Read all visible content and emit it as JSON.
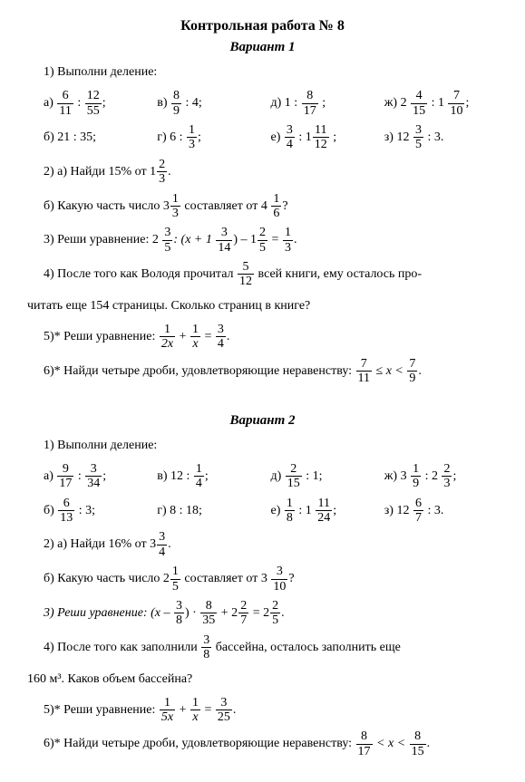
{
  "title": "Контрольная работа № 8",
  "v1": {
    "heading": "Вариант 1",
    "p1_intro": "1) Выполни деление:",
    "p1a_l": "а) ",
    "p1a_f1n": "6",
    "p1a_f1d": "11",
    "p1a_m": " : ",
    "p1a_f2n": "12",
    "p1a_f2d": "55",
    "p1a_r": ";",
    "p1v_l": "в) ",
    "p1v_fn": "8",
    "p1v_fd": "9",
    "p1v_r": " : 4;",
    "p1d_l": "д) 1 : ",
    "p1d_fn": "8",
    "p1d_fd": "17",
    "p1d_r": " ;",
    "p1zh_l": "ж) 2 ",
    "p1zh_f1n": "4",
    "p1zh_f1d": "15",
    "p1zh_m": " : 1 ",
    "p1zh_f2n": "7",
    "p1zh_f2d": "10",
    "p1zh_r": ";",
    "p1b": "б)  21 : 35;",
    "p1g_l": "г) 6 : ",
    "p1g_fn": "1",
    "p1g_fd": "3",
    "p1g_r": ";",
    "p1e_l": "е)  ",
    "p1e_f1n": "3",
    "p1e_f1d": "4",
    "p1e_m": " : 1",
    "p1e_f2n": "11",
    "p1e_f2d": "12",
    "p1e_r": " ;",
    "p1z_l": "з) 12 ",
    "p1z_fn": "3",
    "p1z_fd": "5",
    "p1z_r": " : 3.",
    "p2a_l": "2) а) Найди 15% от 1",
    "p2a_fn": "2",
    "p2a_fd": "3",
    "p2a_r": ".",
    "p2b_l": "б) Какую часть число 3",
    "p2b_f1n": "1",
    "p2b_f1d": "3",
    "p2b_m": " составляет от 4 ",
    "p2b_f2n": "1",
    "p2b_f2d": "6",
    "p2b_r": "?",
    "p3_l": "3) Реши уравнение:  2 ",
    "p3_f1n": "3",
    "p3_f1d": "5",
    "p3_m1": ": (x + 1 ",
    "p3_f2n": "3",
    "p3_f2d": "14",
    "p3_m2": ") – 1",
    "p3_f3n": "2",
    "p3_f3d": "5",
    "p3_m3": " = ",
    "p3_f4n": "1",
    "p3_f4d": "3",
    "p3_r": ".",
    "p4_l": "4) После того как Володя прочитал ",
    "p4_fn": "5",
    "p4_fd": "12",
    "p4_m": " всей книги, ему осталось про-",
    "p4_2": "читать еще 154 страницы. Сколько страниц в книге?",
    "p5_l": "5)* Реши уравнение: ",
    "p5_f1n": "1",
    "p5_f1d": "2x",
    "p5_m": " + ",
    "p5_f2n": "1",
    "p5_f2d": "x",
    "p5_m2": " = ",
    "p5_f3n": "3",
    "p5_f3d": "4",
    "p5_r": ".",
    "p6_l": "6)* Найди четыре дроби, удовлетворяющие неравенству:  ",
    "p6_f1n": "7",
    "p6_f1d": "11",
    "p6_m": " ≤ x < ",
    "p6_f2n": "7",
    "p6_f2d": "9",
    "p6_r": "."
  },
  "v2": {
    "heading": "Вариант 2",
    "p1_intro": "1) Выполни деление:",
    "p1a_l": "а) ",
    "p1a_f1n": "9",
    "p1a_f1d": "17",
    "p1a_m": " : ",
    "p1a_f2n": "3",
    "p1a_f2d": "34",
    "p1a_r": ";",
    "p1v_l": "в) 12 : ",
    "p1v_fn": "1",
    "p1v_fd": "4",
    "p1v_r": ";",
    "p1d_l": "д) ",
    "p1d_fn": "2",
    "p1d_fd": "15",
    "p1d_r": " : 1;",
    "p1zh_l": "ж) 3 ",
    "p1zh_f1n": "1",
    "p1zh_f1d": "9",
    "p1zh_m": " : 2 ",
    "p1zh_f2n": "2",
    "p1zh_f2d": "3",
    "p1zh_r": ";",
    "p1b_l": "б) ",
    "p1b_fn": "6",
    "p1b_fd": "13",
    "p1b_r": " : 3;",
    "p1g": "г) 8 : 18;",
    "p1e_l": "е)  ",
    "p1e_f1n": "1",
    "p1e_f1d": "8",
    "p1e_m": " : 1 ",
    "p1e_f2n": "11",
    "p1e_f2d": "24",
    "p1e_r": ";",
    "p1z_l": "з) 12 ",
    "p1z_fn": "6",
    "p1z_fd": "7",
    "p1z_r": " : 3.",
    "p2a_l": "2) а) Найди 16% от 3",
    "p2a_fn": "3",
    "p2a_fd": "4",
    "p2a_r": ".",
    "p2b_l": "б) Какую часть число 2",
    "p2b_f1n": "1",
    "p2b_f1d": "5",
    "p2b_m": " составляет от 3 ",
    "p2b_f2n": "3",
    "p2b_f2d": "10",
    "p2b_r": "?",
    "p3_l": "3) Реши уравнение:  (x – ",
    "p3_f1n": "3",
    "p3_f1d": "8",
    "p3_m1": ") · ",
    "p3_f2n": "8",
    "p3_f2d": "35",
    "p3_m2": " + 2",
    "p3_f3n": "2",
    "p3_f3d": "7",
    "p3_m3": " = 2",
    "p3_f4n": "2",
    "p3_f4d": "5",
    "p3_r": ".",
    "p4_l": "4) После того как заполнили ",
    "p4_fn": "3",
    "p4_fd": "8",
    "p4_m": " бассейна, осталось заполнить еще",
    "p4_2": "160 м³. Каков объем бассейна?",
    "p5_l": "5)* Реши уравнение: ",
    "p5_f1n": "1",
    "p5_f1d": "5x",
    "p5_m": " + ",
    "p5_f2n": "1",
    "p5_f2d": "x",
    "p5_m2": " = ",
    "p5_f3n": "3",
    "p5_f3d": "25",
    "p5_r": ".",
    "p6_l": "6)* Найди четыре дроби, удовлетворяющие неравенству:  ",
    "p6_f1n": "8",
    "p6_f1d": "17",
    "p6_m": " < x < ",
    "p6_f2n": "8",
    "p6_f2d": "15",
    "p6_r": "."
  }
}
